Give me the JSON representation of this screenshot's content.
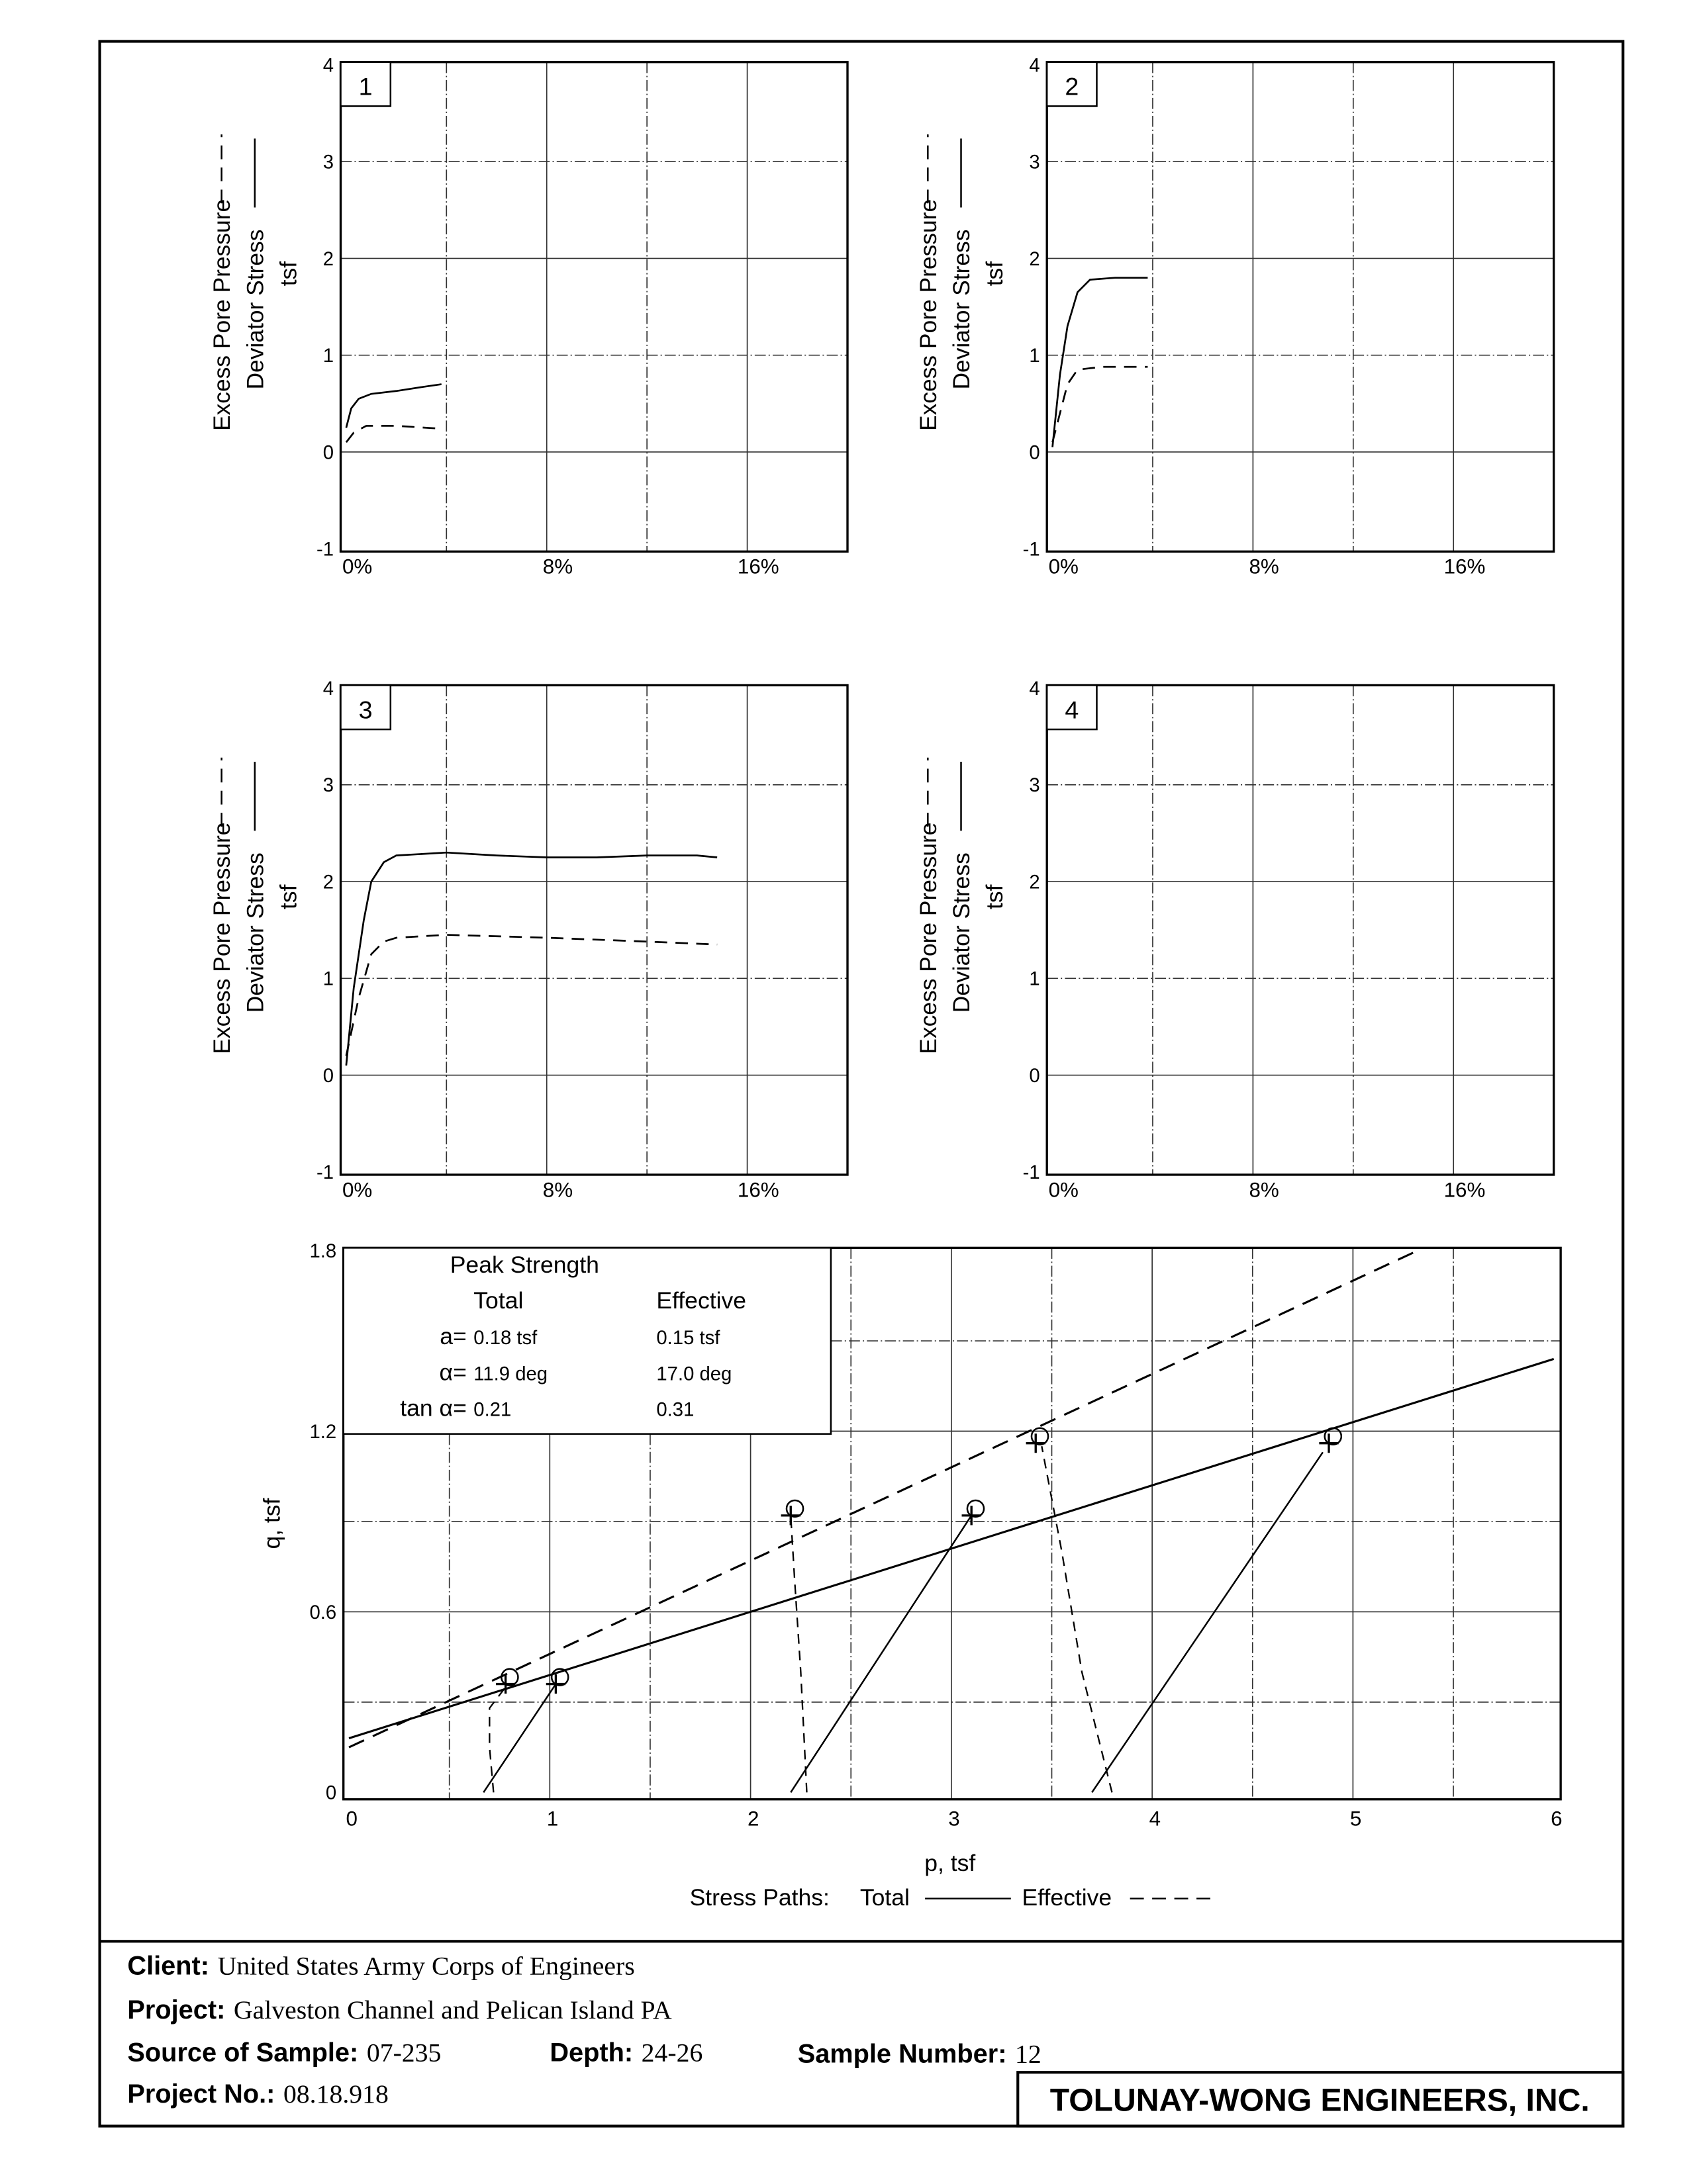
{
  "strain_axis_labels": [
    "0%",
    "8%",
    "16%"
  ],
  "y_axis_label": {
    "line1": "Excess Pore Pressure",
    "line2": "Deviator Stress",
    "line3": "tsf"
  },
  "chart_data": [
    {
      "type": "line",
      "panel": "1",
      "xlim": [
        0,
        20
      ],
      "ylim": [
        -1,
        4
      ],
      "grid": true,
      "yticks": [
        "4",
        "3",
        "2",
        "1",
        "0",
        "-1"
      ],
      "series": [
        {
          "style": "solid",
          "points": [
            [
              0,
              0.25
            ],
            [
              0.2,
              0.45
            ],
            [
              0.5,
              0.55
            ],
            [
              1,
              0.6
            ],
            [
              2,
              0.63
            ],
            [
              3,
              0.67
            ],
            [
              3.8,
              0.7
            ]
          ]
        },
        {
          "style": "dashed",
          "points": [
            [
              0,
              0.1
            ],
            [
              0.3,
              0.2
            ],
            [
              0.8,
              0.27
            ],
            [
              2,
              0.27
            ],
            [
              3.8,
              0.24
            ]
          ]
        }
      ]
    },
    {
      "type": "line",
      "panel": "2",
      "xlim": [
        0,
        20
      ],
      "ylim": [
        -1,
        4
      ],
      "grid": true,
      "yticks": [
        "4",
        "3",
        "2",
        "1",
        "0",
        "-1"
      ],
      "series": [
        {
          "style": "solid",
          "points": [
            [
              0,
              0.05
            ],
            [
              0.3,
              0.8
            ],
            [
              0.6,
              1.3
            ],
            [
              1,
              1.65
            ],
            [
              1.5,
              1.78
            ],
            [
              2.5,
              1.8
            ],
            [
              3.8,
              1.8
            ]
          ]
        },
        {
          "style": "dashed",
          "points": [
            [
              0,
              0.1
            ],
            [
              0.3,
              0.4
            ],
            [
              0.6,
              0.7
            ],
            [
              1,
              0.85
            ],
            [
              2,
              0.88
            ],
            [
              3.8,
              0.88
            ]
          ]
        }
      ]
    },
    {
      "type": "line",
      "panel": "3",
      "xlim": [
        0,
        20
      ],
      "ylim": [
        -1,
        4
      ],
      "grid": true,
      "yticks": [
        "4",
        "3",
        "2",
        "1",
        "0",
        "-1"
      ],
      "series": [
        {
          "style": "solid",
          "points": [
            [
              0,
              0.1
            ],
            [
              0.3,
              0.9
            ],
            [
              0.7,
              1.6
            ],
            [
              1,
              2.0
            ],
            [
              1.5,
              2.2
            ],
            [
              2,
              2.27
            ],
            [
              4,
              2.3
            ],
            [
              6,
              2.27
            ],
            [
              8,
              2.25
            ],
            [
              10,
              2.25
            ],
            [
              12,
              2.27
            ],
            [
              14,
              2.27
            ],
            [
              14.8,
              2.25
            ]
          ]
        },
        {
          "style": "dashed",
          "points": [
            [
              0,
              0.2
            ],
            [
              0.5,
              0.8
            ],
            [
              1,
              1.25
            ],
            [
              1.5,
              1.38
            ],
            [
              2,
              1.42
            ],
            [
              4,
              1.45
            ],
            [
              8,
              1.42
            ],
            [
              12,
              1.38
            ],
            [
              14.8,
              1.35
            ]
          ]
        }
      ]
    },
    {
      "type": "line",
      "panel": "4",
      "xlim": [
        0,
        20
      ],
      "ylim": [
        -1,
        4
      ],
      "grid": true,
      "yticks": [
        "4",
        "3",
        "2",
        "1",
        "0",
        "-1"
      ],
      "series": []
    },
    {
      "type": "line",
      "panel": "stress-paths",
      "xlabel": "p, tsf",
      "ylabel": "q, tsf",
      "xlim": [
        0,
        6
      ],
      "ylim": [
        0,
        1.8
      ],
      "grid": true,
      "xticks": [
        "0",
        "1",
        "2",
        "3",
        "4",
        "5",
        "6"
      ],
      "yticks": [
        "1.8",
        "1.2",
        "0.6",
        "0"
      ],
      "failure_lines": [
        {
          "name": "Total",
          "style": "solid",
          "a": 0.18,
          "tan_alpha": 0.21
        },
        {
          "name": "Effective",
          "style": "dashed",
          "a": 0.15,
          "tan_alpha": 0.31
        }
      ],
      "total_paths": [
        [
          [
            0.67,
            0
          ],
          [
            1.03,
            0.36
          ]
        ],
        [
          [
            2.2,
            0
          ],
          [
            3.1,
            0.92
          ]
        ],
        [
          [
            3.7,
            0
          ],
          [
            4.85,
            1.13
          ]
        ]
      ],
      "effective_paths": [
        [
          [
            0.72,
            0
          ],
          [
            0.7,
            0.15
          ],
          [
            0.7,
            0.28
          ],
          [
            0.78,
            0.35
          ]
        ],
        [
          [
            2.28,
            0
          ],
          [
            2.25,
            0.4
          ],
          [
            2.22,
            0.7
          ],
          [
            2.2,
            0.92
          ]
        ],
        [
          [
            3.8,
            0
          ],
          [
            3.65,
            0.4
          ],
          [
            3.55,
            0.8
          ],
          [
            3.45,
            1.15
          ]
        ]
      ],
      "peaks": [
        [
          0.78,
          0.36
        ],
        [
          1.03,
          0.36
        ],
        [
          2.2,
          0.92
        ],
        [
          3.1,
          0.92
        ],
        [
          3.42,
          1.16
        ],
        [
          4.88,
          1.16
        ]
      ],
      "legend": {
        "title": "Peak Strength",
        "col_total": "Total",
        "col_effective": "Effective",
        "rows": [
          {
            "label": "a=",
            "total": "0.18 tsf",
            "effective": "0.15 tsf"
          },
          {
            "label": "α=",
            "total": "11.9 deg",
            "effective": "17.0 deg"
          },
          {
            "label": "tan α=",
            "total": "0.21",
            "effective": "0.31"
          }
        ]
      },
      "path_legend": {
        "prefix": "Stress Paths:",
        "total": "Total",
        "effective": "Effective"
      }
    }
  ],
  "footer": {
    "client_label": "Client:",
    "client": "United States Army Corps of Engineers",
    "project_label": "Project:",
    "project": "Galveston Channel and Pelican Island PA",
    "source_label": "Source of Sample:",
    "source": "07-235",
    "depth_label": "Depth:",
    "depth": "24-26",
    "sample_label": "Sample Number:",
    "sample": "12",
    "project_no_label": "Project No.:",
    "project_no": "08.18.918",
    "company": "TOLUNAY-WONG ENGINEERS, INC."
  }
}
